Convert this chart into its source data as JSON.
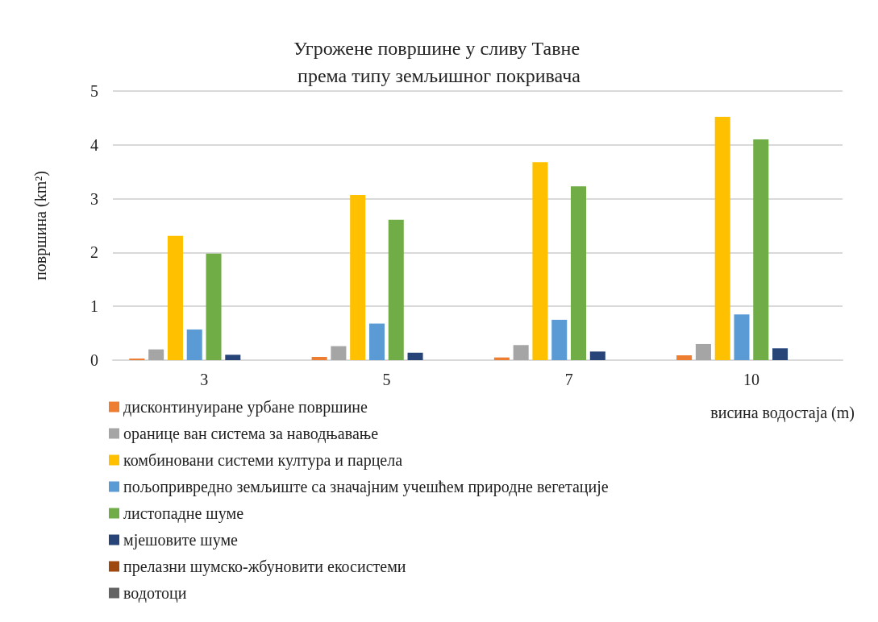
{
  "chart_data": {
    "type": "bar",
    "title": "Угрожене површине у сливу Тавне према типу земљишног покривача",
    "xlabel": "висина водостаја (m)",
    "ylabel": "површина (km²)",
    "categories": [
      "3",
      "5",
      "7",
      "10"
    ],
    "series": [
      {
        "name": "дисконтинуиране урбане површине",
        "color": "#ed7d31",
        "values": [
          0.03,
          0.06,
          0.05,
          0.09
        ]
      },
      {
        "name": "оранице ван система за наводњавање",
        "color": "#a5a5a5",
        "values": [
          0.2,
          0.26,
          0.28,
          0.3
        ]
      },
      {
        "name": "комбиновани системи култура и парцела",
        "color": "#ffc000",
        "values": [
          2.31,
          3.07,
          3.68,
          4.52
        ]
      },
      {
        "name": "пољопривредно земљиште са значајним учешћем природне вегетације",
        "color": "#5b9bd5",
        "values": [
          0.57,
          0.68,
          0.75,
          0.85
        ]
      },
      {
        "name": "листопадне шуме",
        "color": "#70ad47",
        "values": [
          1.98,
          2.61,
          3.23,
          4.1
        ]
      },
      {
        "name": "мјешовите шуме",
        "color": "#264478",
        "values": [
          0.1,
          0.14,
          0.16,
          0.22
        ]
      },
      {
        "name": "прелазни шумско-жбуновити екосистеми",
        "color": "#9e480e",
        "values": [
          0,
          0,
          0,
          0
        ]
      },
      {
        "name": "водотоци",
        "color": "#636363",
        "values": [
          0,
          0,
          0,
          0
        ]
      }
    ],
    "ylim": [
      0,
      5
    ],
    "yticks": [
      0,
      1,
      2,
      3,
      4,
      5
    ],
    "grid": "y",
    "legend": "bottom left"
  }
}
